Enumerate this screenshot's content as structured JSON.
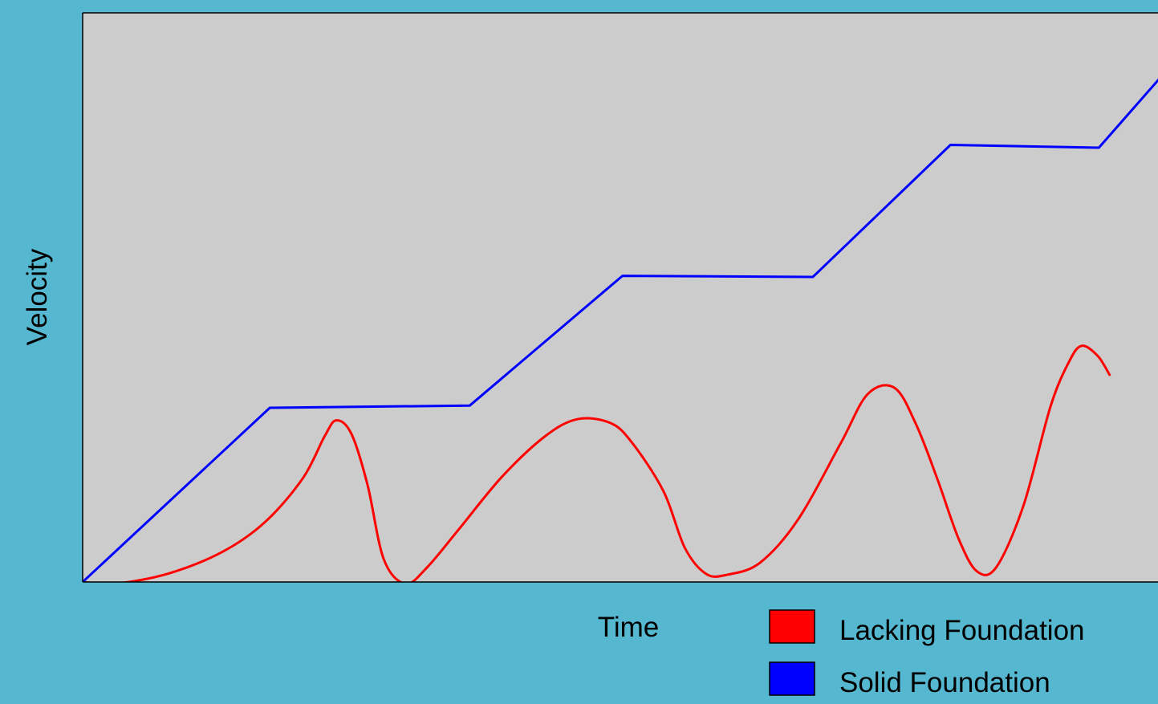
{
  "colors": {
    "page_background": "#56b8d0",
    "plot_background": "#cccccc",
    "axis": "#000000"
  },
  "chart_data": {
    "type": "line",
    "xlabel": "Time",
    "ylabel": "Velocity",
    "xlim": [
      0,
      100
    ],
    "ylim": [
      0,
      100
    ],
    "grid": false,
    "legend_position": "bottom-right",
    "series": [
      {
        "name": "Lacking Foundation",
        "color": "#ff0000",
        "curve": "smooth",
        "points": [
          [
            0,
            0
          ],
          [
            3,
            -0.3
          ],
          [
            8,
            1.5
          ],
          [
            13,
            5.3
          ],
          [
            17,
            10.6
          ],
          [
            20.5,
            18.3
          ],
          [
            22.5,
            25.6
          ],
          [
            23.6,
            28.4
          ],
          [
            25,
            26
          ],
          [
            26.5,
            17
          ],
          [
            28,
            4
          ],
          [
            30,
            -0.3
          ],
          [
            32,
            2.5
          ],
          [
            35,
            9.3
          ],
          [
            39,
            18.5
          ],
          [
            43,
            25.6
          ],
          [
            46,
            28.6
          ],
          [
            49,
            28
          ],
          [
            51,
            24.7
          ],
          [
            54,
            16
          ],
          [
            56,
            6
          ],
          [
            58,
            1.4
          ],
          [
            60,
            1.3
          ],
          [
            63,
            3.4
          ],
          [
            66.5,
            10.9
          ],
          [
            70.5,
            24.4
          ],
          [
            73,
            33
          ],
          [
            75.5,
            34.1
          ],
          [
            77.5,
            27.7
          ],
          [
            79.5,
            18
          ],
          [
            81.5,
            7.4
          ],
          [
            83.2,
            1.8
          ],
          [
            85,
            2.7
          ],
          [
            87.5,
            13.5
          ],
          [
            90,
            30.8
          ],
          [
            91.7,
            38.6
          ],
          [
            92.9,
            41.5
          ],
          [
            94.4,
            39.7
          ],
          [
            95.5,
            36.4
          ]
        ]
      },
      {
        "name": "Solid Foundation",
        "color": "#0000ff",
        "curve": "linear",
        "points": [
          [
            0,
            0
          ],
          [
            17.4,
            30.6
          ],
          [
            36,
            31
          ],
          [
            50.2,
            53.8
          ],
          [
            67.9,
            53.6
          ],
          [
            80.7,
            76.8
          ],
          [
            94.5,
            76.3
          ],
          [
            105.5,
            100
          ]
        ]
      }
    ]
  }
}
